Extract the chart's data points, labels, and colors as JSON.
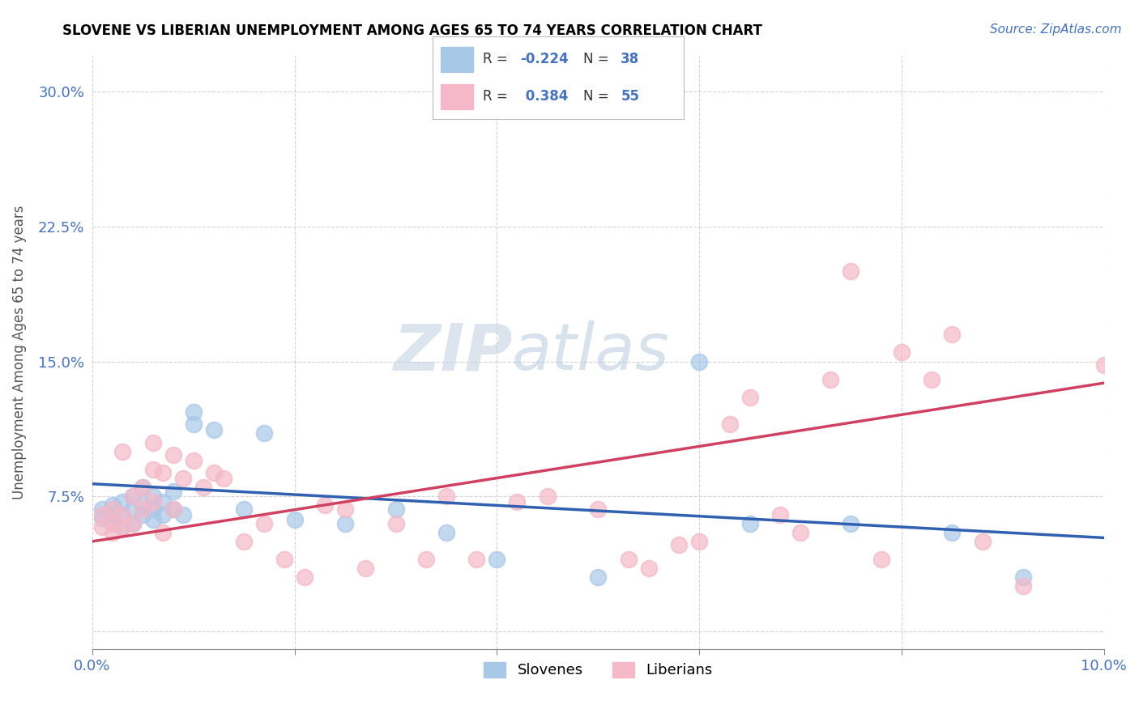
{
  "title": "SLOVENE VS LIBERIAN UNEMPLOYMENT AMONG AGES 65 TO 74 YEARS CORRELATION CHART",
  "source": "Source: ZipAtlas.com",
  "ylabel": "Unemployment Among Ages 65 to 74 years",
  "xlim": [
    0.0,
    0.1
  ],
  "ylim": [
    -0.01,
    0.32
  ],
  "xticks": [
    0.0,
    0.02,
    0.04,
    0.06,
    0.08,
    0.1
  ],
  "yticks": [
    0.0,
    0.075,
    0.15,
    0.225,
    0.3
  ],
  "xtick_labels": [
    "0.0%",
    "",
    "",
    "",
    "",
    "10.0%"
  ],
  "ytick_labels": [
    "",
    "7.5%",
    "15.0%",
    "22.5%",
    "30.0%"
  ],
  "slovene_color": "#a8c8e8",
  "liberian_color": "#f4b8c8",
  "slovene_line_color": "#3060b0",
  "liberian_line_color": "#d04060",
  "background_color": "#ffffff",
  "grid_color": "#c8c8c8",
  "slovene_x": [
    0.001,
    0.001,
    0.002,
    0.002,
    0.002,
    0.003,
    0.003,
    0.003,
    0.004,
    0.004,
    0.004,
    0.005,
    0.005,
    0.005,
    0.006,
    0.006,
    0.006,
    0.007,
    0.007,
    0.008,
    0.008,
    0.009,
    0.01,
    0.01,
    0.012,
    0.015,
    0.017,
    0.02,
    0.025,
    0.03,
    0.035,
    0.04,
    0.05,
    0.06,
    0.065,
    0.075,
    0.085,
    0.092
  ],
  "slovene_y": [
    0.063,
    0.068,
    0.06,
    0.065,
    0.07,
    0.058,
    0.065,
    0.072,
    0.06,
    0.068,
    0.075,
    0.065,
    0.07,
    0.08,
    0.062,
    0.068,
    0.075,
    0.065,
    0.072,
    0.068,
    0.078,
    0.065,
    0.122,
    0.115,
    0.112,
    0.068,
    0.11,
    0.062,
    0.06,
    0.068,
    0.055,
    0.04,
    0.03,
    0.15,
    0.06,
    0.06,
    0.055,
    0.03
  ],
  "liberian_x": [
    0.001,
    0.001,
    0.002,
    0.002,
    0.002,
    0.003,
    0.003,
    0.003,
    0.004,
    0.004,
    0.005,
    0.005,
    0.006,
    0.006,
    0.006,
    0.007,
    0.007,
    0.008,
    0.008,
    0.009,
    0.01,
    0.011,
    0.012,
    0.013,
    0.015,
    0.017,
    0.019,
    0.021,
    0.023,
    0.025,
    0.027,
    0.03,
    0.033,
    0.035,
    0.038,
    0.042,
    0.045,
    0.05,
    0.053,
    0.055,
    0.058,
    0.06,
    0.063,
    0.065,
    0.068,
    0.07,
    0.073,
    0.075,
    0.078,
    0.08,
    0.083,
    0.085,
    0.088,
    0.092,
    0.1
  ],
  "liberian_y": [
    0.058,
    0.065,
    0.055,
    0.06,
    0.068,
    0.058,
    0.065,
    0.1,
    0.06,
    0.075,
    0.068,
    0.08,
    0.072,
    0.09,
    0.105,
    0.088,
    0.055,
    0.098,
    0.068,
    0.085,
    0.095,
    0.08,
    0.088,
    0.085,
    0.05,
    0.06,
    0.04,
    0.03,
    0.07,
    0.068,
    0.035,
    0.06,
    0.04,
    0.075,
    0.04,
    0.072,
    0.075,
    0.068,
    0.04,
    0.035,
    0.048,
    0.05,
    0.115,
    0.13,
    0.065,
    0.055,
    0.14,
    0.2,
    0.04,
    0.155,
    0.14,
    0.165,
    0.05,
    0.025,
    0.148
  ],
  "trend_slovene_x0": 0.0,
  "trend_slovene_x1": 0.1,
  "trend_slovene_y0": 0.082,
  "trend_slovene_y1": 0.052,
  "trend_liberian_x0": 0.0,
  "trend_liberian_x1": 0.1,
  "trend_liberian_y0": 0.05,
  "trend_liberian_y1": 0.138
}
